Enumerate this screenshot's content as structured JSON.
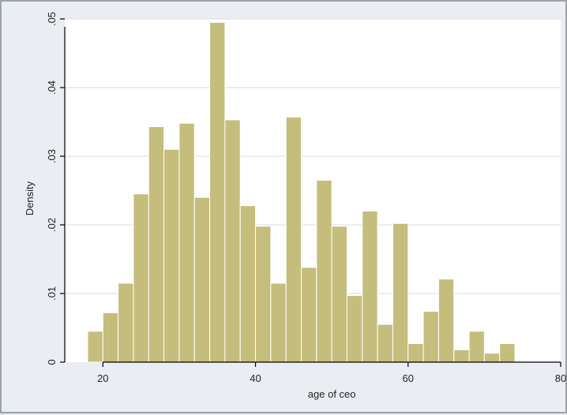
{
  "chart_data": {
    "type": "bar",
    "subtype": "histogram",
    "title": "",
    "xlabel": "age of ceo",
    "ylabel": "Density",
    "xlim": [
      15,
      80
    ],
    "ylim": [
      0,
      0.05
    ],
    "xticks": [
      20,
      40,
      60,
      80
    ],
    "xtick_labels": [
      "20",
      "40",
      "60",
      "80"
    ],
    "yticks": [
      0,
      0.01,
      0.02,
      0.03,
      0.04,
      0.05
    ],
    "ytick_labels": [
      "0",
      ".01",
      ".02",
      ".03",
      ".04",
      ".05"
    ],
    "grid": true,
    "legend": "none",
    "bin_width": 2,
    "series": [
      {
        "bins_start": [
          18,
          20,
          22,
          24,
          26,
          28,
          30,
          32,
          34,
          36,
          38,
          40,
          42,
          44,
          46,
          48,
          50,
          52,
          54,
          56,
          58,
          60,
          62,
          64,
          66,
          68,
          70,
          72,
          74
        ],
        "values": [
          0.0045,
          0.0072,
          0.0115,
          0.0245,
          0.0343,
          0.031,
          0.0348,
          0.024,
          0.0495,
          0.0353,
          0.0228,
          0.0198,
          0.0115,
          0.0357,
          0.0138,
          0.0265,
          0.0198,
          0.0097,
          0.022,
          0.0055,
          0.0202,
          0.0027,
          0.0074,
          0.0121,
          0.0018,
          0.0045,
          0.0013,
          0.0027,
          0.0
        ]
      }
    ],
    "colors": {
      "bar_fill": "#c5bd7c",
      "bar_stroke": "#ffffff",
      "plot_background": "#ffffff",
      "grid": "#e4e8ec",
      "axis": "#000000"
    }
  }
}
